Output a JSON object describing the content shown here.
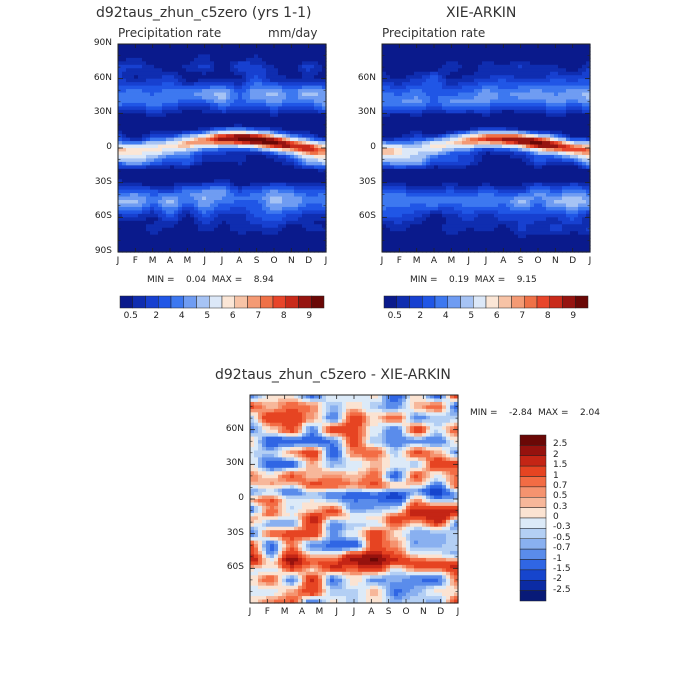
{
  "chart_data": [
    {
      "type": "heatmap",
      "title": "d92taus_zhun_c5zero (yrs 1-1)",
      "subtitle_left": "Precipitation rate",
      "subtitle_right": "mm/day",
      "x_tick_labels": [
        "J",
        "F",
        "M",
        "A",
        "M",
        "J",
        "J",
        "A",
        "S",
        "O",
        "N",
        "D",
        "J"
      ],
      "y_tick_labels": [
        "90N",
        "60N",
        "30N",
        "0",
        "30S",
        "60S",
        "90S"
      ],
      "ylim": [
        -90,
        90
      ],
      "stats": "MIN =    0.04  MAX =    8.94",
      "colorbar_labels": [
        "0.5",
        "2",
        "4",
        "5",
        "6",
        "7",
        "8",
        "9"
      ]
    },
    {
      "type": "heatmap",
      "title": "XIE-ARKIN",
      "subtitle_left": "Precipitation rate",
      "x_tick_labels": [
        "J",
        "F",
        "M",
        "A",
        "M",
        "J",
        "J",
        "A",
        "S",
        "O",
        "N",
        "D",
        "J"
      ],
      "y_tick_labels": [
        "60N",
        "30N",
        "0",
        "30S",
        "60S"
      ],
      "ylim": [
        -90,
        90
      ],
      "stats": "MIN =    0.19  MAX =    9.15",
      "colorbar_labels": [
        "0.5",
        "2",
        "4",
        "5",
        "6",
        "7",
        "8",
        "9"
      ]
    },
    {
      "type": "heatmap",
      "title": "d92taus_zhun_c5zero - XIE-ARKIN",
      "x_tick_labels": [
        "J",
        "F",
        "M",
        "A",
        "M",
        "J",
        "J",
        "A",
        "S",
        "O",
        "N",
        "D",
        "J"
      ],
      "y_tick_labels": [
        "60N",
        "30N",
        "0",
        "30S",
        "60S"
      ],
      "ylim": [
        -90,
        90
      ],
      "stats": "MIN =    -2.84  MAX =    2.04",
      "colorbar_labels": [
        "2.5",
        "2",
        "1.5",
        "1",
        "0.7",
        "0.5",
        "0.3",
        "0",
        "-0.3",
        "-0.5",
        "-0.7",
        "-1",
        "-1.5",
        "-2",
        "-2.5"
      ]
    }
  ],
  "colors": {
    "precip_scale": [
      "#0a1a8c",
      "#0f2db0",
      "#1740d0",
      "#2056e6",
      "#3d78f0",
      "#6f9cf2",
      "#a6c3f4",
      "#dce8f8",
      "#fbe6d6",
      "#f7c3a6",
      "#f49a74",
      "#ef7147",
      "#e8452a",
      "#c92a1a",
      "#961410",
      "#6a0806"
    ],
    "diff_scale": [
      "#6a0806",
      "#96120e",
      "#c42515",
      "#e64422",
      "#f36c44",
      "#f5936f",
      "#f7b79a",
      "#fbe3d2",
      "#dceaf8",
      "#b3cff4",
      "#89b0f0",
      "#5a8ceb",
      "#3066e4",
      "#1645cd",
      "#0b2ba4",
      "#081a78"
    ]
  }
}
